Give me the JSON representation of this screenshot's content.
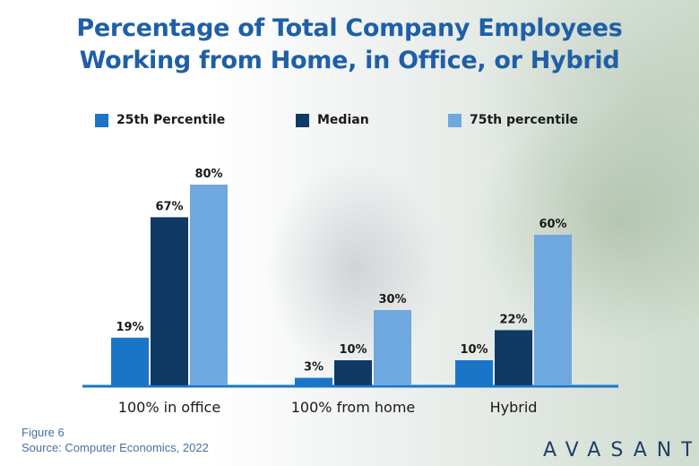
{
  "title": {
    "line1": "Percentage of Total Company Employees",
    "line2": "Working from Home, in Office, or Hybrid"
  },
  "colors": {
    "title": "#1f5fa6",
    "series_25th": "#1a75c9",
    "series_median": "#0f3a66",
    "series_75th": "#6fa8de",
    "axis": "#1a75c9",
    "footer": "#4a6fa0"
  },
  "chart_data": {
    "type": "bar",
    "categories": [
      "100% in office",
      "100% from home",
      "Hybrid"
    ],
    "series": [
      {
        "name": "25th Percentile",
        "values": [
          19,
          3,
          10
        ],
        "labels": [
          "19%",
          "3%",
          "10%"
        ]
      },
      {
        "name": "Median",
        "values": [
          67,
          10,
          22
        ],
        "labels": [
          "67%",
          "10%",
          "22%"
        ]
      },
      {
        "name": "75th percentile",
        "values": [
          80,
          30,
          60
        ],
        "labels": [
          "80%",
          "30%",
          "60%"
        ]
      }
    ],
    "ylim": [
      0,
      100
    ],
    "grid": false,
    "legend": "top"
  },
  "footer": {
    "figure": "Figure 6",
    "source": "Source: Computer Economics, 2022"
  },
  "logo": {
    "text": "AVASANT"
  }
}
